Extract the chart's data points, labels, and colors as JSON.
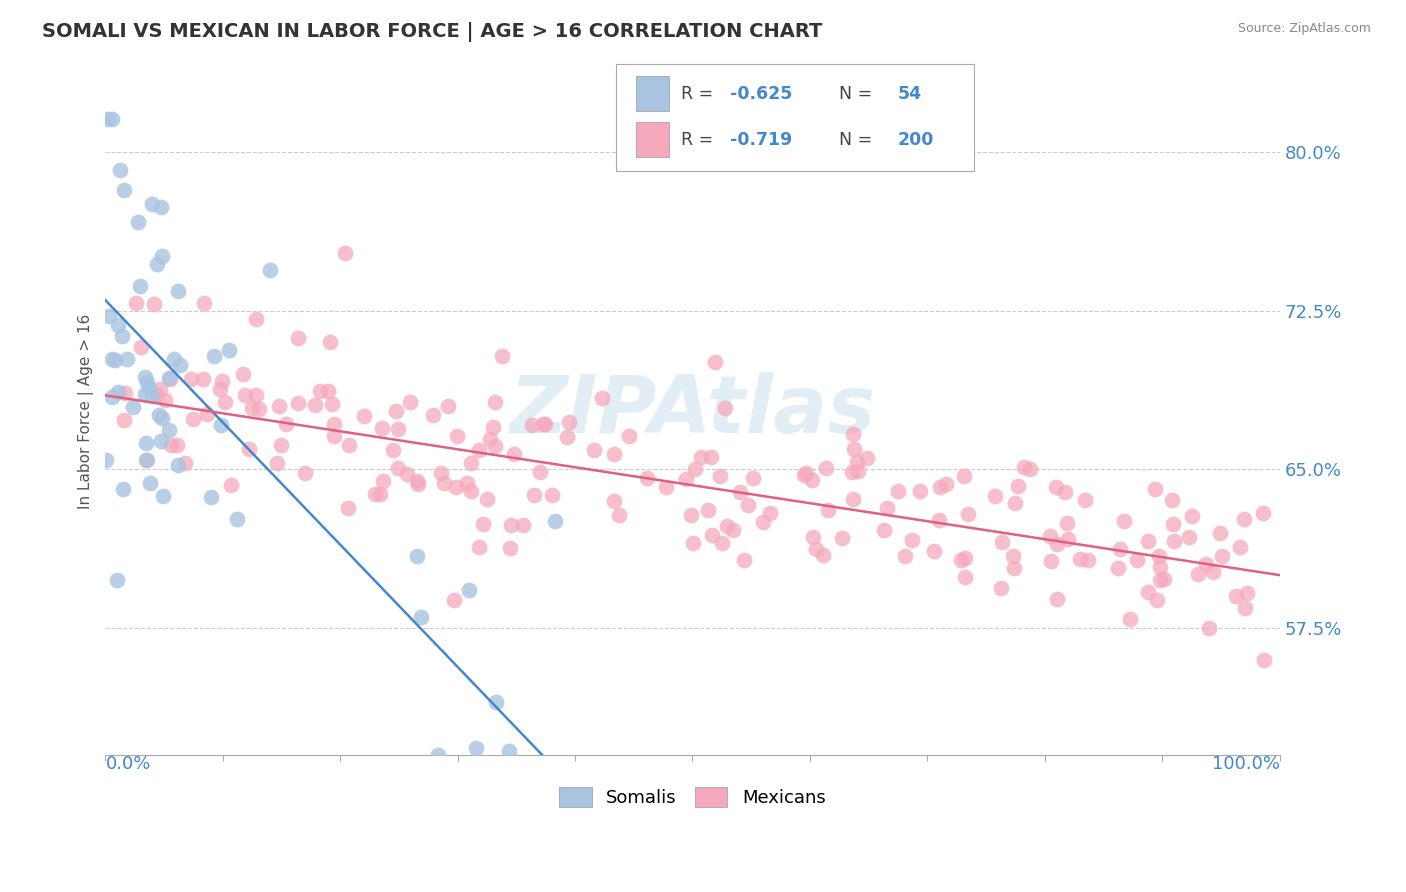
{
  "title": "SOMALI VS MEXICAN IN LABOR FORCE | AGE > 16 CORRELATION CHART",
  "source_text": "Source: ZipAtlas.com",
  "ylabel": "In Labor Force | Age > 16",
  "y_ticks": [
    0.575,
    0.65,
    0.725,
    0.8
  ],
  "y_tick_labels": [
    "57.5%",
    "65.0%",
    "72.5%",
    "80.0%"
  ],
  "x_lim": [
    0.0,
    1.0
  ],
  "y_lim": [
    0.515,
    0.84
  ],
  "somali_color": "#a8c4e0",
  "mexican_color": "#f5a8bc",
  "somali_line_color": "#4488cc",
  "mexican_line_color": "#e06080",
  "somali_R": -0.625,
  "somali_N": 54,
  "mexican_R": -0.719,
  "mexican_N": 200,
  "watermark": "ZIPAtlas",
  "watermark_color": "#d0e4f0",
  "background_color": "#ffffff",
  "title_fontsize": 14,
  "tick_label_color": "#4488cc",
  "grid_color": "#cccccc",
  "somali_seed": 12,
  "mexican_seed": 42
}
